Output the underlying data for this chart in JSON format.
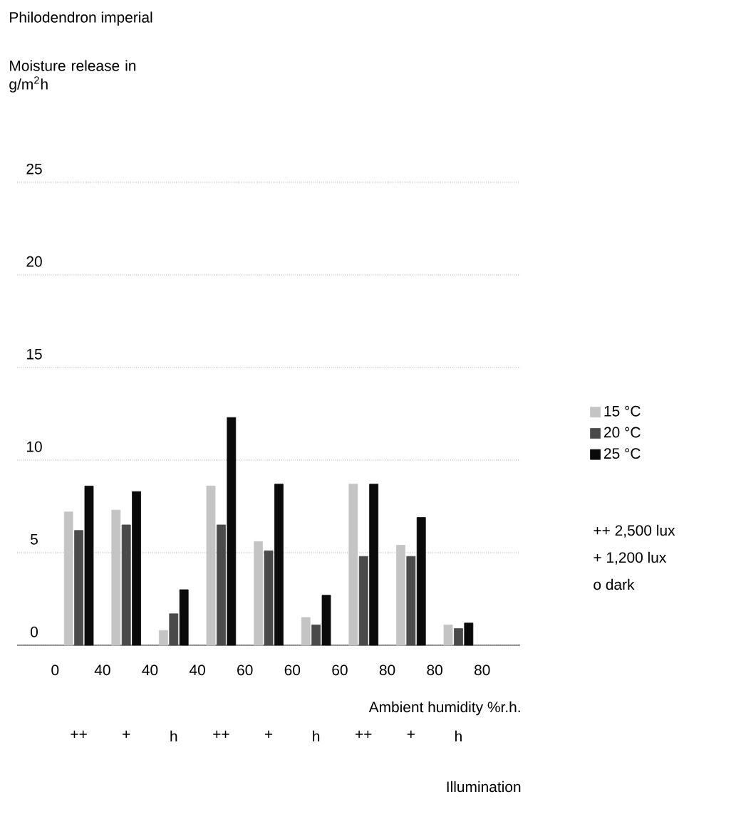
{
  "chart_data": {
    "type": "bar",
    "title": "Philodendron imperial",
    "ylabel": "Moisture release in g/m$^{2}$h",
    "xlabel": "Illumination",
    "categories": [
      "++",
      "+",
      "h",
      "++",
      "+",
      "h",
      "++",
      "+",
      "h"
    ],
    "series": [
      {
        "name": "15 °C",
        "color": "#c4c4c4",
        "values": [
          7.2,
          7.3,
          0.8,
          8.6,
          5.6,
          1.5,
          8.7,
          5.4,
          1.1
        ]
      },
      {
        "name": "20 °C",
        "color": "#4a4a4a",
        "values": [
          6.2,
          6.5,
          1.7,
          6.5,
          5.1,
          1.1,
          4.8,
          4.8,
          0.9
        ]
      },
      {
        "name": "25 °C",
        "color": "#0a0a0a",
        "values": [
          8.6,
          8.3,
          3.0,
          12.3,
          8.7,
          2.7,
          8.7,
          6.9,
          1.2
        ]
      }
    ],
    "ylim": [
      0,
      25
    ],
    "yticks": [
      0,
      5,
      10,
      15,
      20,
      25
    ],
    "grid": "y",
    "legend": "right",
    "annotations": [
      "0",
      "40",
      "40",
      "40",
      "60",
      "60",
      "60",
      "80",
      "80",
      "80",
      "Ambient humidity %r.h.",
      "++ 2,500 lux",
      "+ 1,200 lux",
      "o dark"
    ]
  }
}
